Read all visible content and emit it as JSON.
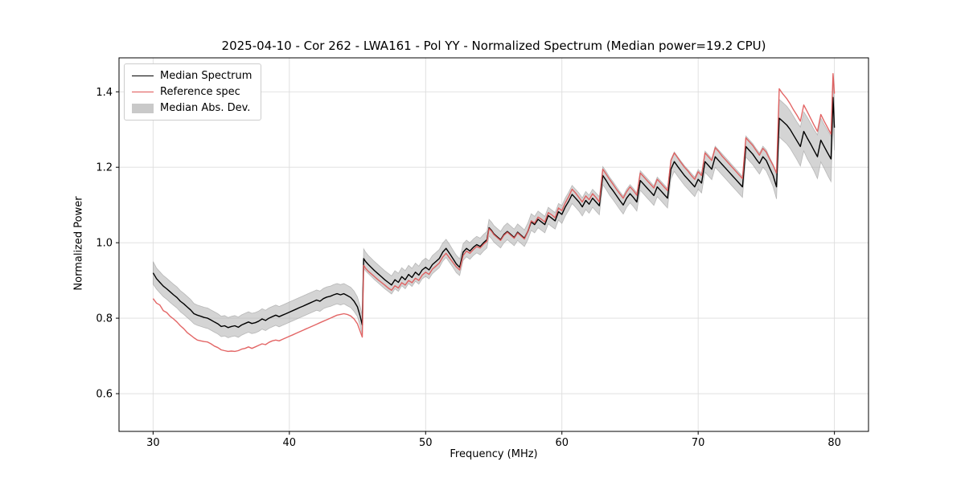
{
  "chart_data": {
    "type": "line",
    "title": "2025-04-10 - Cor 262 - LWA161 - Pol YY - Normalized Spectrum (Median power=19.2 CPU)",
    "xlabel": "Frequency (MHz)",
    "ylabel": "Normalized Power",
    "xlim": [
      27.5,
      82.5
    ],
    "ylim": [
      0.5,
      1.49
    ],
    "xticks": [
      30,
      40,
      50,
      60,
      70,
      80
    ],
    "yticks": [
      0.6,
      0.8,
      1.0,
      1.2,
      1.4
    ],
    "grid": true,
    "colors": {
      "median_line": "#000000",
      "reference_line": "#e05555",
      "mad_band_fill": "#aaaaaa",
      "grid_line": "#dddddd",
      "axes": "#000000"
    },
    "legend": {
      "position": "upper-left",
      "entries": [
        {
          "label": "Median Spectrum",
          "type": "line",
          "color": "#000000"
        },
        {
          "label": "Reference spec",
          "type": "line",
          "color": "#e05555"
        },
        {
          "label": "Median Abs. Dev.",
          "type": "patch",
          "color": "#c9c9c9"
        }
      ]
    },
    "series_format": [
      "frequency_mhz",
      "median",
      "reference",
      "mad"
    ],
    "points": [
      [
        30.0,
        0.92,
        0.852,
        0.03
      ],
      [
        30.25,
        0.905,
        0.84,
        0.028
      ],
      [
        30.5,
        0.895,
        0.835,
        0.028
      ],
      [
        30.75,
        0.885,
        0.82,
        0.028
      ],
      [
        31.0,
        0.878,
        0.815,
        0.028
      ],
      [
        31.25,
        0.87,
        0.805,
        0.028
      ],
      [
        31.5,
        0.862,
        0.798,
        0.028
      ],
      [
        31.75,
        0.855,
        0.79,
        0.028
      ],
      [
        32.0,
        0.845,
        0.78,
        0.028
      ],
      [
        32.25,
        0.838,
        0.772,
        0.028
      ],
      [
        32.5,
        0.83,
        0.762,
        0.028
      ],
      [
        32.75,
        0.822,
        0.755,
        0.028
      ],
      [
        33.0,
        0.812,
        0.748,
        0.027
      ],
      [
        33.25,
        0.808,
        0.742,
        0.027
      ],
      [
        33.5,
        0.805,
        0.74,
        0.027
      ],
      [
        33.75,
        0.802,
        0.738,
        0.027
      ],
      [
        34.0,
        0.8,
        0.737,
        0.027
      ],
      [
        34.25,
        0.795,
        0.732,
        0.027
      ],
      [
        34.5,
        0.79,
        0.726,
        0.027
      ],
      [
        34.75,
        0.785,
        0.722,
        0.027
      ],
      [
        35.0,
        0.778,
        0.716,
        0.027
      ],
      [
        35.25,
        0.78,
        0.714,
        0.027
      ],
      [
        35.5,
        0.775,
        0.712,
        0.027
      ],
      [
        35.75,
        0.778,
        0.713,
        0.027
      ],
      [
        36.0,
        0.78,
        0.712,
        0.027
      ],
      [
        36.25,
        0.776,
        0.714,
        0.027
      ],
      [
        36.5,
        0.782,
        0.718,
        0.027
      ],
      [
        36.75,
        0.786,
        0.72,
        0.027
      ],
      [
        37.0,
        0.79,
        0.724,
        0.027
      ],
      [
        37.25,
        0.786,
        0.72,
        0.027
      ],
      [
        37.5,
        0.788,
        0.724,
        0.027
      ],
      [
        37.75,
        0.792,
        0.728,
        0.027
      ],
      [
        38.0,
        0.798,
        0.732,
        0.027
      ],
      [
        38.25,
        0.794,
        0.73,
        0.027
      ],
      [
        38.5,
        0.8,
        0.736,
        0.027
      ],
      [
        38.75,
        0.804,
        0.74,
        0.027
      ],
      [
        39.0,
        0.808,
        0.742,
        0.027
      ],
      [
        39.25,
        0.804,
        0.74,
        0.027
      ],
      [
        39.5,
        0.808,
        0.744,
        0.027
      ],
      [
        39.75,
        0.812,
        0.748,
        0.027
      ],
      [
        40.0,
        0.816,
        0.752,
        0.027
      ],
      [
        40.25,
        0.82,
        0.756,
        0.027
      ],
      [
        40.5,
        0.824,
        0.76,
        0.027
      ],
      [
        40.75,
        0.828,
        0.764,
        0.027
      ],
      [
        41.0,
        0.832,
        0.768,
        0.027
      ],
      [
        41.25,
        0.836,
        0.772,
        0.027
      ],
      [
        41.5,
        0.84,
        0.776,
        0.027
      ],
      [
        41.75,
        0.844,
        0.78,
        0.027
      ],
      [
        42.0,
        0.848,
        0.784,
        0.027
      ],
      [
        42.25,
        0.845,
        0.788,
        0.027
      ],
      [
        42.5,
        0.852,
        0.792,
        0.027
      ],
      [
        42.75,
        0.856,
        0.796,
        0.027
      ],
      [
        43.0,
        0.858,
        0.8,
        0.027
      ],
      [
        43.25,
        0.862,
        0.804,
        0.027
      ],
      [
        43.5,
        0.865,
        0.808,
        0.027
      ],
      [
        43.75,
        0.862,
        0.81,
        0.027
      ],
      [
        44.0,
        0.865,
        0.812,
        0.027
      ],
      [
        44.25,
        0.86,
        0.81,
        0.027
      ],
      [
        44.5,
        0.855,
        0.806,
        0.027
      ],
      [
        44.75,
        0.845,
        0.798,
        0.027
      ],
      [
        45.0,
        0.83,
        0.785,
        0.026
      ],
      [
        45.2,
        0.805,
        0.765,
        0.026
      ],
      [
        45.35,
        0.782,
        0.75,
        0.026
      ],
      [
        45.45,
        0.958,
        0.94,
        0.026
      ],
      [
        45.6,
        0.95,
        0.932,
        0.025
      ],
      [
        45.8,
        0.942,
        0.924,
        0.024
      ],
      [
        46.0,
        0.935,
        0.918,
        0.024
      ],
      [
        46.25,
        0.926,
        0.91,
        0.024
      ],
      [
        46.5,
        0.918,
        0.902,
        0.024
      ],
      [
        46.75,
        0.91,
        0.895,
        0.024
      ],
      [
        47.0,
        0.902,
        0.888,
        0.024
      ],
      [
        47.25,
        0.895,
        0.88,
        0.024
      ],
      [
        47.5,
        0.888,
        0.874,
        0.024
      ],
      [
        47.75,
        0.902,
        0.886,
        0.024
      ],
      [
        48.0,
        0.895,
        0.88,
        0.024
      ],
      [
        48.25,
        0.91,
        0.894,
        0.024
      ],
      [
        48.5,
        0.902,
        0.888,
        0.024
      ],
      [
        48.75,
        0.916,
        0.9,
        0.024
      ],
      [
        49.0,
        0.908,
        0.894,
        0.024
      ],
      [
        49.25,
        0.922,
        0.906,
        0.024
      ],
      [
        49.5,
        0.914,
        0.9,
        0.024
      ],
      [
        49.75,
        0.928,
        0.914,
        0.024
      ],
      [
        50.0,
        0.935,
        0.922,
        0.024
      ],
      [
        50.25,
        0.928,
        0.916,
        0.024
      ],
      [
        50.5,
        0.942,
        0.93,
        0.024
      ],
      [
        50.75,
        0.95,
        0.938,
        0.024
      ],
      [
        51.0,
        0.958,
        0.946,
        0.024
      ],
      [
        51.25,
        0.975,
        0.962,
        0.024
      ],
      [
        51.5,
        0.985,
        0.972,
        0.024
      ],
      [
        51.75,
        0.972,
        0.96,
        0.024
      ],
      [
        52.0,
        0.958,
        0.948,
        0.023
      ],
      [
        52.25,
        0.944,
        0.936,
        0.023
      ],
      [
        52.5,
        0.935,
        0.928,
        0.022
      ],
      [
        52.75,
        0.975,
        0.966,
        0.022
      ],
      [
        53.0,
        0.985,
        0.978,
        0.022
      ],
      [
        53.25,
        0.978,
        0.972,
        0.022
      ],
      [
        53.5,
        0.988,
        0.982,
        0.022
      ],
      [
        53.75,
        0.995,
        0.99,
        0.022
      ],
      [
        54.0,
        0.99,
        0.986,
        0.022
      ],
      [
        54.25,
        1.0,
        0.996,
        0.022
      ],
      [
        54.5,
        1.008,
        1.004,
        0.022
      ],
      [
        54.65,
        1.04,
        1.038,
        0.022
      ],
      [
        54.85,
        1.032,
        1.03,
        0.022
      ],
      [
        55.0,
        1.024,
        1.022,
        0.022
      ],
      [
        55.25,
        1.016,
        1.014,
        0.022
      ],
      [
        55.5,
        1.008,
        1.006,
        0.022
      ],
      [
        55.75,
        1.022,
        1.02,
        0.022
      ],
      [
        56.0,
        1.03,
        1.028,
        0.022
      ],
      [
        56.25,
        1.022,
        1.02,
        0.022
      ],
      [
        56.5,
        1.014,
        1.012,
        0.022
      ],
      [
        56.75,
        1.028,
        1.026,
        0.022
      ],
      [
        57.0,
        1.02,
        1.018,
        0.022
      ],
      [
        57.25,
        1.012,
        1.01,
        0.022
      ],
      [
        57.5,
        1.03,
        1.03,
        0.022
      ],
      [
        57.75,
        1.055,
        1.058,
        0.022
      ],
      [
        58.0,
        1.048,
        1.052,
        0.022
      ],
      [
        58.25,
        1.062,
        1.068,
        0.022
      ],
      [
        58.5,
        1.055,
        1.062,
        0.022
      ],
      [
        58.75,
        1.048,
        1.055,
        0.022
      ],
      [
        59.0,
        1.072,
        1.08,
        0.022
      ],
      [
        59.25,
        1.065,
        1.074,
        0.022
      ],
      [
        59.5,
        1.058,
        1.066,
        0.022
      ],
      [
        59.75,
        1.082,
        1.092,
        0.022
      ],
      [
        60.0,
        1.075,
        1.085,
        0.024
      ],
      [
        60.25,
        1.095,
        1.106,
        0.024
      ],
      [
        60.5,
        1.11,
        1.122,
        0.024
      ],
      [
        60.75,
        1.128,
        1.142,
        0.024
      ],
      [
        61.0,
        1.118,
        1.132,
        0.024
      ],
      [
        61.25,
        1.108,
        1.12,
        0.024
      ],
      [
        61.5,
        1.095,
        1.108,
        0.024
      ],
      [
        61.75,
        1.112,
        1.124,
        0.024
      ],
      [
        62.0,
        1.102,
        1.114,
        0.024
      ],
      [
        62.25,
        1.118,
        1.13,
        0.024
      ],
      [
        62.5,
        1.108,
        1.12,
        0.024
      ],
      [
        62.75,
        1.098,
        1.108,
        0.024
      ],
      [
        63.0,
        1.178,
        1.195,
        0.024
      ],
      [
        63.25,
        1.165,
        1.182,
        0.024
      ],
      [
        63.5,
        1.15,
        1.168,
        0.024
      ],
      [
        63.75,
        1.138,
        1.155,
        0.024
      ],
      [
        64.0,
        1.125,
        1.142,
        0.024
      ],
      [
        64.25,
        1.112,
        1.13,
        0.024
      ],
      [
        64.5,
        1.1,
        1.118,
        0.024
      ],
      [
        64.75,
        1.118,
        1.135,
        0.024
      ],
      [
        65.0,
        1.13,
        1.148,
        0.024
      ],
      [
        65.25,
        1.12,
        1.138,
        0.024
      ],
      [
        65.5,
        1.108,
        1.126,
        0.024
      ],
      [
        65.75,
        1.165,
        1.185,
        0.026
      ],
      [
        66.0,
        1.155,
        1.175,
        0.026
      ],
      [
        66.25,
        1.145,
        1.165,
        0.026
      ],
      [
        66.5,
        1.135,
        1.155,
        0.026
      ],
      [
        66.75,
        1.125,
        1.145,
        0.026
      ],
      [
        67.0,
        1.148,
        1.168,
        0.026
      ],
      [
        67.25,
        1.138,
        1.158,
        0.026
      ],
      [
        67.5,
        1.128,
        1.148,
        0.026
      ],
      [
        67.75,
        1.118,
        1.138,
        0.026
      ],
      [
        68.0,
        1.195,
        1.218,
        0.026
      ],
      [
        68.25,
        1.215,
        1.238,
        0.026
      ],
      [
        68.5,
        1.202,
        1.225,
        0.026
      ],
      [
        68.75,
        1.19,
        1.212,
        0.026
      ],
      [
        69.0,
        1.178,
        1.2,
        0.026
      ],
      [
        69.25,
        1.168,
        1.19,
        0.026
      ],
      [
        69.5,
        1.158,
        1.178,
        0.026
      ],
      [
        69.75,
        1.148,
        1.168,
        0.026
      ],
      [
        70.0,
        1.168,
        1.188,
        0.026
      ],
      [
        70.25,
        1.158,
        1.178,
        0.026
      ],
      [
        70.5,
        1.215,
        1.238,
        0.028
      ],
      [
        70.75,
        1.205,
        1.228,
        0.028
      ],
      [
        71.0,
        1.195,
        1.218,
        0.028
      ],
      [
        71.25,
        1.228,
        1.252,
        0.028
      ],
      [
        71.5,
        1.218,
        1.242,
        0.028
      ],
      [
        71.75,
        1.208,
        1.23,
        0.028
      ],
      [
        72.0,
        1.198,
        1.22,
        0.028
      ],
      [
        72.25,
        1.188,
        1.21,
        0.028
      ],
      [
        72.5,
        1.178,
        1.2,
        0.028
      ],
      [
        72.75,
        1.168,
        1.19,
        0.028
      ],
      [
        73.0,
        1.158,
        1.18,
        0.028
      ],
      [
        73.25,
        1.148,
        1.17,
        0.028
      ],
      [
        73.5,
        1.255,
        1.278,
        0.028
      ],
      [
        73.75,
        1.245,
        1.268,
        0.028
      ],
      [
        74.0,
        1.235,
        1.258,
        0.028
      ],
      [
        74.25,
        1.222,
        1.245,
        0.028
      ],
      [
        74.5,
        1.21,
        1.232,
        0.028
      ],
      [
        74.75,
        1.228,
        1.25,
        0.028
      ],
      [
        75.0,
        1.218,
        1.24,
        0.028
      ],
      [
        75.25,
        1.198,
        1.222,
        0.028
      ],
      [
        75.5,
        1.178,
        1.205,
        0.03
      ],
      [
        75.75,
        1.148,
        1.185,
        0.032
      ],
      [
        75.95,
        1.33,
        1.408,
        0.05
      ],
      [
        76.2,
        1.322,
        1.395,
        0.05
      ],
      [
        76.5,
        1.312,
        1.382,
        0.05
      ],
      [
        76.75,
        1.3,
        1.368,
        0.05
      ],
      [
        77.0,
        1.285,
        1.352,
        0.05
      ],
      [
        77.25,
        1.27,
        1.338,
        0.05
      ],
      [
        77.5,
        1.255,
        1.322,
        0.052
      ],
      [
        77.75,
        1.295,
        1.365,
        0.052
      ],
      [
        78.0,
        1.278,
        1.348,
        0.055
      ],
      [
        78.25,
        1.262,
        1.33,
        0.055
      ],
      [
        78.5,
        1.245,
        1.312,
        0.055
      ],
      [
        78.75,
        1.228,
        1.295,
        0.058
      ],
      [
        79.0,
        1.272,
        1.34,
        0.058
      ],
      [
        79.25,
        1.255,
        1.322,
        0.058
      ],
      [
        79.5,
        1.238,
        1.305,
        0.06
      ],
      [
        79.75,
        1.222,
        1.288,
        0.06
      ],
      [
        79.9,
        1.385,
        1.448,
        0.06
      ],
      [
        80.0,
        1.305,
        1.395,
        0.06
      ]
    ]
  }
}
